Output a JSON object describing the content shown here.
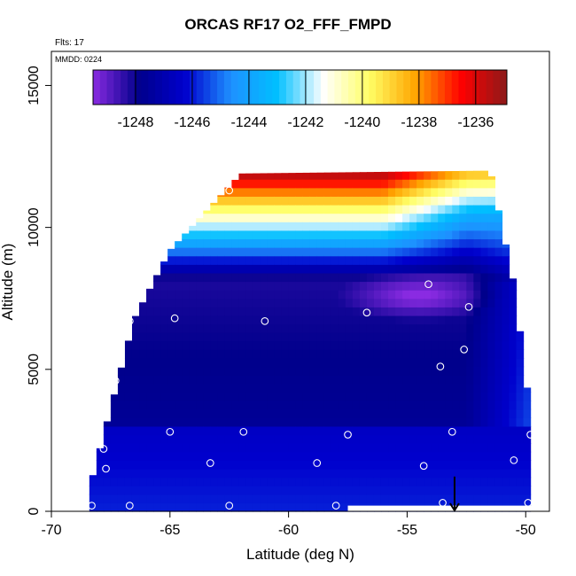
{
  "chart_data": {
    "type": "heatmap",
    "title": "ORCAS RF17 O2_FFF_FMPD",
    "flights_label": "Flts: 17",
    "date_label": "MMDD: 0224",
    "xlabel": "Latitude (deg N)",
    "ylabel": "Altitude (m)",
    "xlim": [
      -70,
      -49
    ],
    "ylim": [
      0,
      16200
    ],
    "x_ticks": [
      -70,
      -65,
      -60,
      -55,
      -50
    ],
    "y_ticks": [
      0,
      5000,
      10000,
      15000
    ],
    "colorbar": {
      "range": [
        -1249.5,
        -1234.9
      ],
      "ticks": [
        -1248,
        -1246,
        -1244,
        -1242,
        -1240,
        -1238,
        -1236
      ],
      "palette": [
        "#8a2be2",
        "#00008b",
        "#0000cd",
        "#1e90ff",
        "#00bfff",
        "#ffffff",
        "#ffff66",
        "#ffa500",
        "#ff0000",
        "#8b1a1a"
      ]
    },
    "sample_points": [
      [
        -68.3,
        200
      ],
      [
        -67.8,
        2200
      ],
      [
        -67.7,
        1500
      ],
      [
        -67.3,
        4600
      ],
      [
        -66.7,
        200
      ],
      [
        -66.7,
        6700
      ],
      [
        -66.0,
        8000
      ],
      [
        -65.0,
        2800
      ],
      [
        -64.8,
        6800
      ],
      [
        -63.3,
        1700
      ],
      [
        -62.5,
        11300
      ],
      [
        -62.5,
        200
      ],
      [
        -61.9,
        2800
      ],
      [
        -61.0,
        6700
      ],
      [
        -60.5,
        12100
      ],
      [
        -58.8,
        1700
      ],
      [
        -58.0,
        200
      ],
      [
        -57.5,
        2700
      ],
      [
        -56.7,
        7000
      ],
      [
        -54.3,
        1600
      ],
      [
        -54.1,
        8000
      ],
      [
        -53.6,
        5100
      ],
      [
        -53.5,
        300
      ],
      [
        -53.1,
        2800
      ],
      [
        -52.6,
        5700
      ],
      [
        -52.4,
        7200
      ],
      [
        -50.5,
        1800
      ],
      [
        -49.9,
        300
      ],
      [
        -49.8,
        2700
      ]
    ],
    "arrow_marker": {
      "lat": -53.0
    }
  }
}
